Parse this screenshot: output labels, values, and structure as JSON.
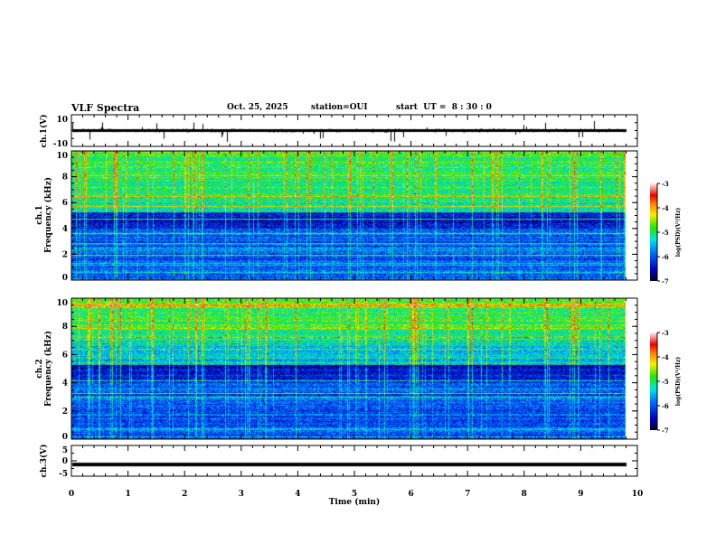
{
  "header": {
    "title": "VLF Spectra",
    "date": "Oct. 25, 2025",
    "station": "station=OUI",
    "start_ut": "start  UT =  8 : 30 : 0"
  },
  "chart_data": [
    {
      "type": "line",
      "name": "ch1-waveform",
      "ylabel": "ch.1(V)",
      "ylim": [
        -10,
        10
      ],
      "yticks": [
        "10",
        "-10"
      ],
      "xlim": [
        0,
        10
      ],
      "baseline_value": 0,
      "data_end_min": 9.8
    },
    {
      "type": "heatmap",
      "name": "ch1-spectrogram",
      "ylabel": "ch.1\nFrequency (kHz)",
      "ylim": [
        0,
        10
      ],
      "yticks": [
        "0",
        "2",
        "4",
        "6",
        "8",
        "10"
      ],
      "xlim": [
        0,
        10
      ],
      "colorbar": {
        "label": "log(PSD)(V²/Hz)",
        "range": [
          -7,
          -3
        ],
        "ticks": [
          "-3",
          "-4",
          "-5",
          "-6",
          "-7"
        ]
      }
    },
    {
      "type": "heatmap",
      "name": "ch2-spectrogram",
      "ylabel": "ch.2\nFrequency (kHz)",
      "ylim": [
        0,
        10
      ],
      "yticks": [
        "0",
        "2",
        "4",
        "6",
        "8",
        "10"
      ],
      "xlim": [
        0,
        10
      ],
      "colorbar": {
        "label": "log(PSD)(V²/Hz)",
        "range": [
          -7,
          -3
        ],
        "ticks": [
          "-3",
          "-4",
          "-5",
          "-6",
          "-7"
        ]
      }
    },
    {
      "type": "line",
      "name": "ch3-waveform",
      "ylabel": "ch.3(V)",
      "ylim": [
        -5,
        5
      ],
      "yticks": [
        "5",
        "0",
        "-5"
      ],
      "xlim": [
        0,
        10
      ],
      "baseline_value": -1.2,
      "data_end_min": 9.8
    }
  ],
  "xaxis": {
    "label": "Time (min)",
    "ticks": [
      "0",
      "1",
      "2",
      "3",
      "4",
      "5",
      "6",
      "7",
      "8",
      "9",
      "10"
    ]
  },
  "ch1_label_short": "ch.1(V)",
  "ch3_label_short": "ch.3(V)",
  "freq_label": "Frequency (kHz)",
  "ch1_name": "ch.1",
  "ch2_name": "ch.2",
  "colorbar_label": "log(PSD)(V²/Hz)"
}
